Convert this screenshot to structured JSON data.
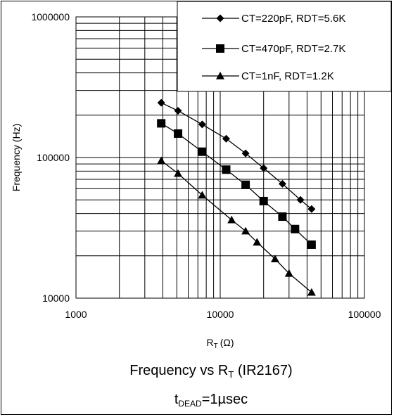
{
  "chart_data": {
    "type": "line",
    "x_scale": "log",
    "y_scale": "log",
    "xlim": [
      1000,
      100000
    ],
    "ylim": [
      10000,
      1000000
    ],
    "x_ticks": [
      "1000",
      "10000",
      "100000"
    ],
    "y_ticks": [
      "1000000",
      "100000",
      "10000"
    ],
    "xlabel": {
      "main": "R",
      "sub": "T",
      "unit": "(Ω)"
    },
    "ylabel": "Frequency (Hz)",
    "title": {
      "main": "Frequency vs R",
      "sub": "T",
      "rest": " (IR2167)"
    },
    "subtitle": {
      "main": "t",
      "sub": "DEAD",
      "rest": "=1µsec"
    },
    "grid": true,
    "legend_position": "top-right",
    "series": [
      {
        "name": "CT=220pF, RDT=5.6K",
        "marker": "diamond",
        "x": [
          3900,
          5100,
          7500,
          11000,
          15000,
          20000,
          27000,
          36000,
          43000
        ],
        "y": [
          245000,
          215000,
          172000,
          136000,
          107000,
          84000,
          65000,
          50000,
          43000
        ]
      },
      {
        "name": "CT=470pF, RDT=2.7K",
        "marker": "square",
        "x": [
          3900,
          5100,
          7500,
          11000,
          15000,
          20000,
          27000,
          33000,
          43000
        ],
        "y": [
          175000,
          148000,
          110000,
          82000,
          64000,
          49000,
          38000,
          31000,
          24000
        ]
      },
      {
        "name": "CT=1nF, RDT=1.2K",
        "marker": "triangle",
        "x": [
          3900,
          5100,
          7500,
          12000,
          15000,
          18000,
          24000,
          30000,
          43000
        ],
        "y": [
          95000,
          77000,
          54000,
          36000,
          30000,
          25000,
          19000,
          15000,
          11000
        ]
      }
    ]
  }
}
